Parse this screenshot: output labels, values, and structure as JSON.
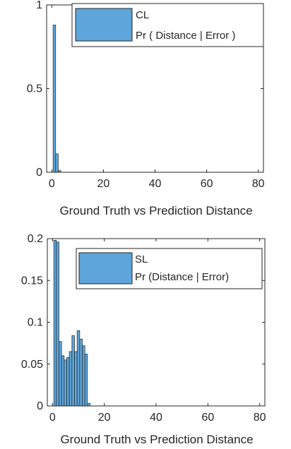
{
  "chart_data": [
    {
      "type": "bar",
      "subtype": "histogram",
      "xlabel": "Ground Truth vs Prediction Distance",
      "ylabel": "",
      "xlim": [
        -2,
        82
      ],
      "ylim": [
        0,
        1
      ],
      "xticks": [
        0,
        20,
        40,
        60,
        80
      ],
      "yticks": [
        0,
        0.5,
        1
      ],
      "xtick_labels": [
        "0",
        "20",
        "40",
        "60",
        "80"
      ],
      "ytick_labels": [
        "0",
        "0.5",
        "1"
      ],
      "bin_width": 1,
      "bars": [
        {
          "x": 1,
          "value": 0.88
        },
        {
          "x": 2,
          "value": 0.11
        },
        {
          "x": 3,
          "value": 0.01
        }
      ],
      "legend": {
        "position": "top-right",
        "entries": [
          "CL",
          "Pr ( Distance | Error )"
        ]
      },
      "bar_color": "#5DA5DA",
      "grid": false
    },
    {
      "type": "bar",
      "subtype": "histogram",
      "xlabel": "Ground Truth vs Prediction Distance",
      "ylabel": "",
      "xlim": [
        -2,
        82
      ],
      "ylim": [
        0,
        0.2
      ],
      "xticks": [
        0,
        20,
        40,
        60,
        80
      ],
      "yticks": [
        0,
        0.05,
        0.1,
        0.15,
        0.2
      ],
      "xtick_labels": [
        "0",
        "20",
        "40",
        "60",
        "80"
      ],
      "ytick_labels": [
        "0",
        "0.05",
        "0.1",
        "0.15",
        "0.2"
      ],
      "bin_width": 1,
      "bars": [
        {
          "x": 1,
          "value": 0.198
        },
        {
          "x": 2,
          "value": 0.196
        },
        {
          "x": 3,
          "value": 0.077
        },
        {
          "x": 4,
          "value": 0.06
        },
        {
          "x": 5,
          "value": 0.055
        },
        {
          "x": 6,
          "value": 0.058
        },
        {
          "x": 7,
          "value": 0.065
        },
        {
          "x": 8,
          "value": 0.084
        },
        {
          "x": 9,
          "value": 0.065
        },
        {
          "x": 10,
          "value": 0.09
        },
        {
          "x": 11,
          "value": 0.08
        },
        {
          "x": 12,
          "value": 0.072
        },
        {
          "x": 13,
          "value": 0.062
        },
        {
          "x": 14,
          "value": 0.003
        }
      ],
      "legend": {
        "position": "top-right",
        "entries": [
          "SL",
          "Pr (Distance | Error)"
        ]
      },
      "bar_color": "#5DA5DA",
      "grid": false
    }
  ]
}
